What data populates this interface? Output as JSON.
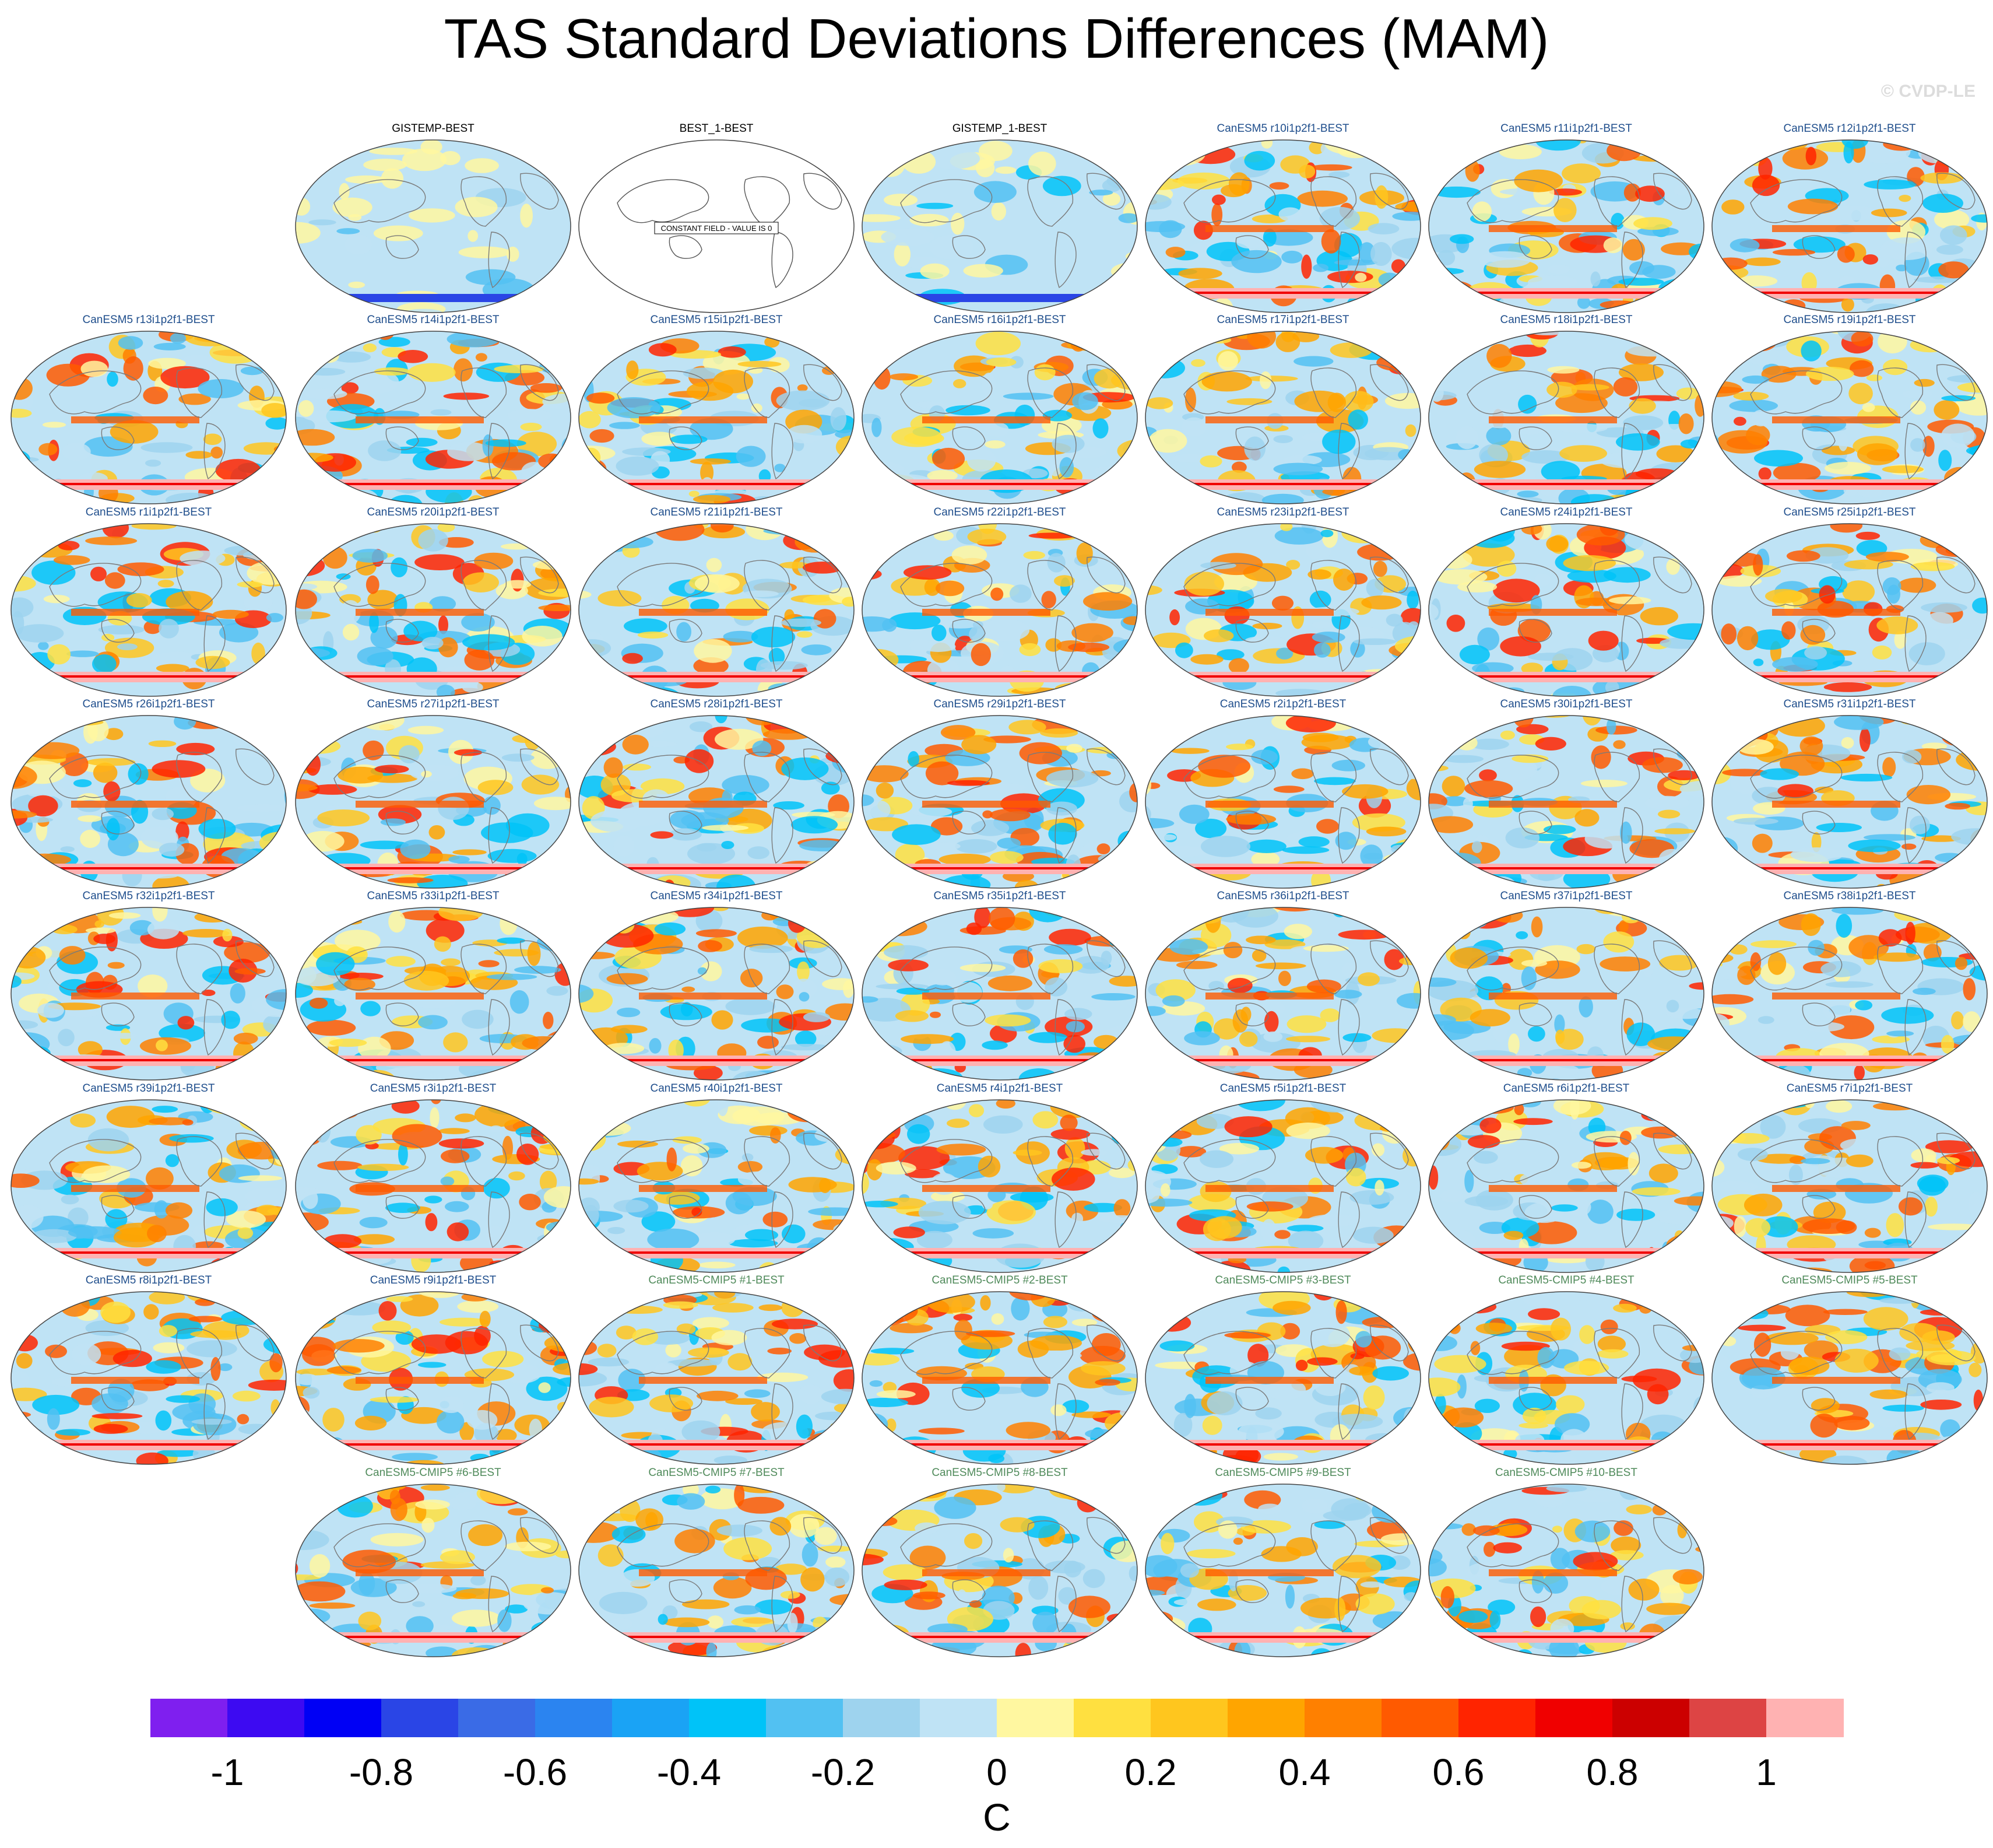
{
  "title": "TAS Standard Deviations Differences (MAM)",
  "watermark": "© CVDP-LE",
  "constant_field_label": "CONSTANT FIELD - VALUE IS 0",
  "colorbar": {
    "unit": "C",
    "ticks": [
      "-1",
      "-0.8",
      "-0.6",
      "-0.4",
      "-0.2",
      "0",
      "0.2",
      "0.4",
      "0.6",
      "0.8",
      "1"
    ],
    "levels": [
      -1.1,
      -1.0,
      -0.9,
      -0.8,
      -0.7,
      -0.6,
      -0.5,
      -0.4,
      -0.3,
      -0.2,
      -0.1,
      0,
      0.1,
      0.2,
      0.3,
      0.4,
      0.5,
      0.6,
      0.7,
      0.8,
      0.9,
      1.0,
      1.1
    ],
    "colors": [
      "#7f1fef",
      "#3d0af2",
      "#0000f5",
      "#2a45e6",
      "#3a6be6",
      "#2b84f0",
      "#1aa3f5",
      "#00c3f8",
      "#52c1f2",
      "#9ed3ee",
      "#bfe3f5",
      "#fff7a0",
      "#ffe040",
      "#ffc61e",
      "#ffa500",
      "#ff8000",
      "#ff5a00",
      "#ff2400",
      "#f00000",
      "#cc0000",
      "#dd4444",
      "#ffb2b2"
    ]
  },
  "panels": [
    {
      "title": "GISTEMP-BEST",
      "group": "obs"
    },
    {
      "title": "BEST_1-BEST",
      "group": "obs",
      "constant": true
    },
    {
      "title": "GISTEMP_1-BEST",
      "group": "obs"
    },
    {
      "title": "CanESM5 r10i1p2f1-BEST",
      "group": "cmip6"
    },
    {
      "title": "CanESM5 r11i1p2f1-BEST",
      "group": "cmip6"
    },
    {
      "title": "CanESM5 r12i1p2f1-BEST",
      "group": "cmip6"
    },
    {
      "title": "CanESM5 r13i1p2f1-BEST",
      "group": "cmip6"
    },
    {
      "title": "CanESM5 r14i1p2f1-BEST",
      "group": "cmip6"
    },
    {
      "title": "CanESM5 r15i1p2f1-BEST",
      "group": "cmip6"
    },
    {
      "title": "CanESM5 r16i1p2f1-BEST",
      "group": "cmip6"
    },
    {
      "title": "CanESM5 r17i1p2f1-BEST",
      "group": "cmip6"
    },
    {
      "title": "CanESM5 r18i1p2f1-BEST",
      "group": "cmip6"
    },
    {
      "title": "CanESM5 r19i1p2f1-BEST",
      "group": "cmip6"
    },
    {
      "title": "CanESM5 r1i1p2f1-BEST",
      "group": "cmip6"
    },
    {
      "title": "CanESM5 r20i1p2f1-BEST",
      "group": "cmip6"
    },
    {
      "title": "CanESM5 r21i1p2f1-BEST",
      "group": "cmip6"
    },
    {
      "title": "CanESM5 r22i1p2f1-BEST",
      "group": "cmip6"
    },
    {
      "title": "CanESM5 r23i1p2f1-BEST",
      "group": "cmip6"
    },
    {
      "title": "CanESM5 r24i1p2f1-BEST",
      "group": "cmip6"
    },
    {
      "title": "CanESM5 r25i1p2f1-BEST",
      "group": "cmip6"
    },
    {
      "title": "CanESM5 r26i1p2f1-BEST",
      "group": "cmip6"
    },
    {
      "title": "CanESM5 r27i1p2f1-BEST",
      "group": "cmip6"
    },
    {
      "title": "CanESM5 r28i1p2f1-BEST",
      "group": "cmip6"
    },
    {
      "title": "CanESM5 r29i1p2f1-BEST",
      "group": "cmip6"
    },
    {
      "title": "CanESM5 r2i1p2f1-BEST",
      "group": "cmip6"
    },
    {
      "title": "CanESM5 r30i1p2f1-BEST",
      "group": "cmip6"
    },
    {
      "title": "CanESM5 r31i1p2f1-BEST",
      "group": "cmip6"
    },
    {
      "title": "CanESM5 r32i1p2f1-BEST",
      "group": "cmip6"
    },
    {
      "title": "CanESM5 r33i1p2f1-BEST",
      "group": "cmip6"
    },
    {
      "title": "CanESM5 r34i1p2f1-BEST",
      "group": "cmip6"
    },
    {
      "title": "CanESM5 r35i1p2f1-BEST",
      "group": "cmip6"
    },
    {
      "title": "CanESM5 r36i1p2f1-BEST",
      "group": "cmip6"
    },
    {
      "title": "CanESM5 r37i1p2f1-BEST",
      "group": "cmip6"
    },
    {
      "title": "CanESM5 r38i1p2f1-BEST",
      "group": "cmip6"
    },
    {
      "title": "CanESM5 r39i1p2f1-BEST",
      "group": "cmip6"
    },
    {
      "title": "CanESM5 r3i1p2f1-BEST",
      "group": "cmip6"
    },
    {
      "title": "CanESM5 r40i1p2f1-BEST",
      "group": "cmip6"
    },
    {
      "title": "CanESM5 r4i1p2f1-BEST",
      "group": "cmip6"
    },
    {
      "title": "CanESM5 r5i1p2f1-BEST",
      "group": "cmip6"
    },
    {
      "title": "CanESM5 r6i1p2f1-BEST",
      "group": "cmip6"
    },
    {
      "title": "CanESM5 r7i1p2f1-BEST",
      "group": "cmip6"
    },
    {
      "title": "CanESM5 r8i1p2f1-BEST",
      "group": "cmip6"
    },
    {
      "title": "CanESM5 r9i1p2f1-BEST",
      "group": "cmip6"
    },
    {
      "title": "CanESM5-CMIP5 #1-BEST",
      "group": "cmip5"
    },
    {
      "title": "CanESM5-CMIP5 #2-BEST",
      "group": "cmip5"
    },
    {
      "title": "CanESM5-CMIP5 #3-BEST",
      "group": "cmip5"
    },
    {
      "title": "CanESM5-CMIP5 #4-BEST",
      "group": "cmip5"
    },
    {
      "title": "CanESM5-CMIP5 #5-BEST",
      "group": "cmip5"
    },
    {
      "title": "CanESM5-CMIP5 #6-BEST",
      "group": "cmip5"
    },
    {
      "title": "CanESM5-CMIP5 #7-BEST",
      "group": "cmip5"
    },
    {
      "title": "CanESM5-CMIP5 #8-BEST",
      "group": "cmip5"
    },
    {
      "title": "CanESM5-CMIP5 #9-BEST",
      "group": "cmip5"
    },
    {
      "title": "CanESM5-CMIP5 #10-BEST",
      "group": "cmip5"
    }
  ]
}
